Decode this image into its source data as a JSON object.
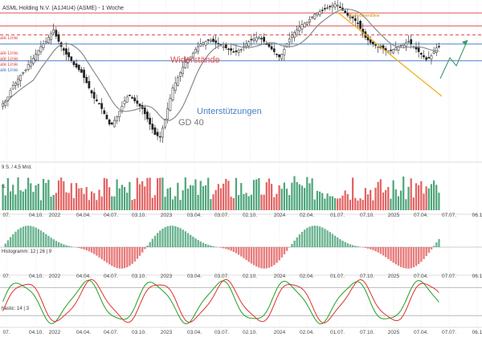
{
  "chart_title": "ASML Holding N.V. (A1J4U4) (ASME) - 1 Woche",
  "chart_data": [
    {
      "type": "candlestick",
      "panel": "price",
      "title": "ASML Holding N.V. (A1J4U4) (ASME) - 1 Woche",
      "y_range": [
        420,
        1040
      ],
      "annotations": {
        "resistance_text": "Widerstände",
        "support_text": "Unterstützungen",
        "ma_text": "GD 40",
        "trend_text": "Abwärtstrendlinie",
        "left_labels": [
          "ale Linie",
          "ale Linie",
          "ale Linie",
          "ale Linie",
          "ale Linie"
        ]
      },
      "horizontal_lines": [
        {
          "name": "resistance-1",
          "value": 990,
          "color": "#e05050"
        },
        {
          "name": "resistance-2",
          "value": 940,
          "color": "#e05050"
        },
        {
          "name": "resistance-dashed",
          "value": 905,
          "color": "#e05050"
        },
        {
          "name": "support-1",
          "value": 870,
          "color": "#4a7fc8"
        },
        {
          "name": "support-2",
          "value": 805,
          "color": "#4a7fc8"
        }
      ],
      "close_series": [
        640,
        650,
        665,
        690,
        710,
        720,
        735,
        750,
        760,
        770,
        790,
        800,
        815,
        830,
        845,
        860,
        870,
        880,
        895,
        910,
        925,
        900,
        880,
        860,
        845,
        830,
        820,
        805,
        790,
        780,
        770,
        760,
        740,
        720,
        700,
        680,
        660,
        650,
        640,
        620,
        600,
        580,
        560,
        560,
        575,
        590,
        610,
        630,
        650,
        665,
        670,
        660,
        650,
        640,
        630,
        620,
        600,
        580,
        560,
        540,
        520,
        515,
        510,
        545,
        580,
        620,
        660,
        700,
        720,
        740,
        760,
        780,
        800,
        810,
        820,
        835,
        850,
        860,
        870,
        875,
        880,
        885,
        885,
        880,
        875,
        870,
        865,
        860,
        855,
        850,
        845,
        840,
        840,
        845,
        850,
        860,
        870,
        880,
        885,
        890,
        895,
        895,
        890,
        880,
        870,
        860,
        850,
        840,
        830,
        820,
        830,
        850,
        870,
        890,
        905,
        915,
        925,
        935,
        945,
        950,
        955,
        965,
        975,
        985,
        990,
        995,
        1000,
        1005,
        1010,
        1015,
        1020,
        1025,
        1020,
        1010,
        1000,
        990,
        980,
        975,
        970,
        960,
        950,
        930,
        910,
        895,
        885,
        875,
        870,
        865,
        860,
        855,
        850,
        845,
        842,
        845,
        850,
        855,
        860,
        865,
        870,
        875,
        880,
        870,
        860,
        850,
        840,
        830,
        820,
        810,
        815,
        825,
        840,
        855,
        860
      ],
      "ma_series_name": "GD 40"
    },
    {
      "type": "bar",
      "panel": "volume",
      "label": "S.",
      "partial_label": "9 S. / 4,5 Mrd."
    },
    {
      "type": "bar",
      "panel": "histogram",
      "label": "Histogramm: 12 | 26 | 9"
    },
    {
      "type": "line",
      "panel": "stochastic",
      "label": "hastic: 14 | 3",
      "series": [
        {
          "name": "K",
          "color": "#20a020"
        },
        {
          "name": "D",
          "color": "#e03030"
        }
      ],
      "levels": [
        80,
        20
      ]
    }
  ],
  "x_tick_labels": [
    "07.",
    "04.10.",
    "2022",
    "04.04.",
    "04.07.",
    "03.10.",
    "2023",
    "03.04.",
    "03.07.",
    "02.10.",
    "2024",
    "02.04.",
    "01.07.",
    "07.10.",
    "2025",
    "07.04.",
    "07.07.",
    "06.1"
  ],
  "colors": {
    "up": "#3a9b6c",
    "down": "#e05050",
    "resistance": "#e05050",
    "support": "#4a7fc8",
    "ma": "#8a8a8a",
    "trend": "#f0b020",
    "projection": "#3a9b6c",
    "grid": "#dcdcdc"
  }
}
